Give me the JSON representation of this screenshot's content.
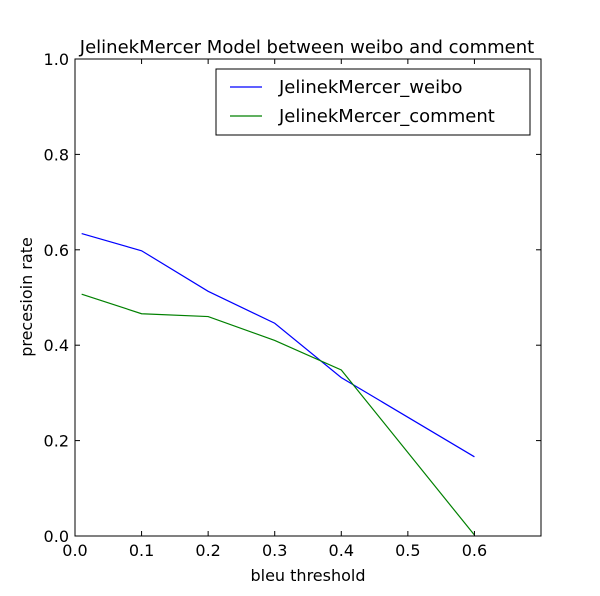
{
  "chart_data": {
    "type": "line",
    "title": "JelinekMercer Model between weibo and comment",
    "xlabel": "bleu threshold",
    "ylabel": "precesioin rate",
    "xlim": [
      0.0,
      0.7
    ],
    "ylim": [
      0.0,
      1.0
    ],
    "xticks": [
      "0.0",
      "0.1",
      "0.2",
      "0.3",
      "0.4",
      "0.5",
      "0.6"
    ],
    "yticks": [
      "0.0",
      "0.2",
      "0.4",
      "0.6",
      "0.8",
      "1.0"
    ],
    "grid": false,
    "legend_position": "top-right",
    "series": [
      {
        "name": "JelinekMercer_weibo",
        "color": "#0000ff",
        "x": [
          0.01,
          0.1,
          0.2,
          0.3,
          0.4,
          0.6
        ],
        "y": [
          0.634,
          0.598,
          0.513,
          0.446,
          0.332,
          0.166
        ]
      },
      {
        "name": "JelinekMercer_comment",
        "color": "#008000",
        "x": [
          0.01,
          0.1,
          0.2,
          0.3,
          0.4,
          0.6
        ],
        "y": [
          0.507,
          0.466,
          0.46,
          0.41,
          0.348,
          0.002
        ]
      }
    ]
  }
}
